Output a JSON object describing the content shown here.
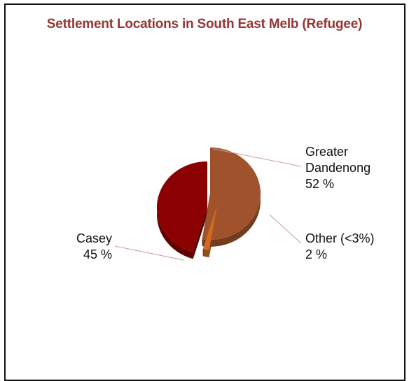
{
  "chart_data": {
    "type": "pie",
    "style": "3d-exploded",
    "title": "Settlement Locations in South East Melb (Refugee)",
    "slices": [
      {
        "name_lines": [
          "Greater",
          "Dandenong"
        ],
        "value_label": "52 %",
        "value": 52,
        "color": "#A0522D"
      },
      {
        "name_lines": [
          "Other (<3%)"
        ],
        "value_label": "2 %",
        "value": 2,
        "color": "#D2691E"
      },
      {
        "name_lines": [
          "Casey"
        ],
        "value_label": "45 %",
        "value": 45,
        "color": "#8B0000"
      }
    ],
    "legend": "none"
  }
}
